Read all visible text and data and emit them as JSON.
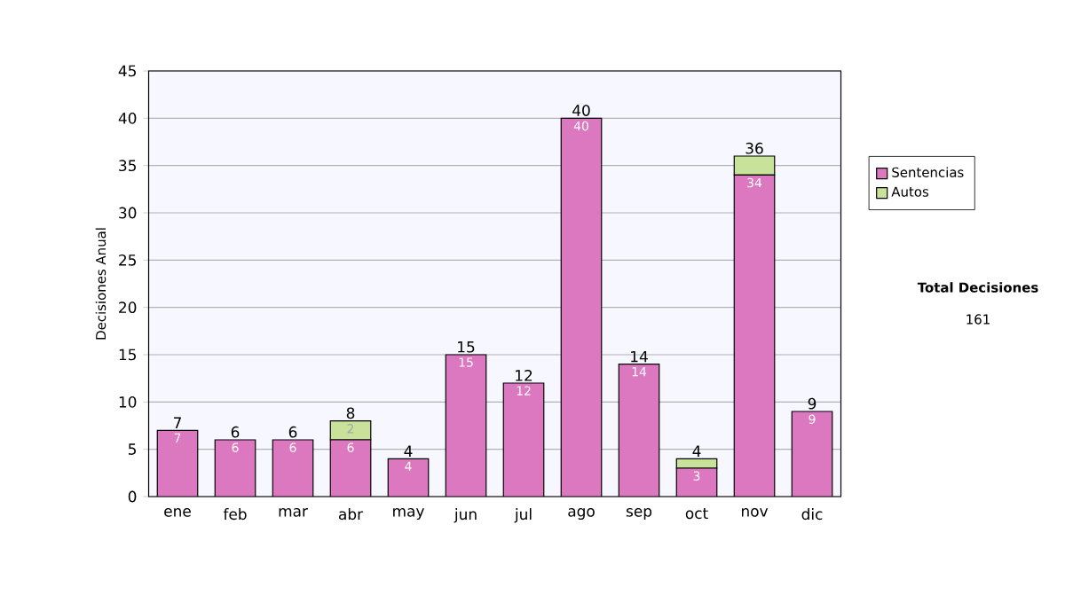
{
  "chart_data": {
    "type": "bar",
    "stacked": true,
    "categories": [
      "ene",
      "feb",
      "mar",
      "abr",
      "may",
      "jun",
      "jul",
      "ago",
      "sep",
      "oct",
      "nov",
      "dic"
    ],
    "series": [
      {
        "name": "Sentencias",
        "color": "#dc78c0",
        "values": [
          7,
          6,
          6,
          6,
          4,
          15,
          12,
          40,
          14,
          3,
          34,
          9
        ],
        "value_labels": [
          "7",
          "6",
          "6",
          "6",
          "4",
          "15",
          "12",
          "40",
          "14",
          "3",
          "34",
          "9"
        ]
      },
      {
        "name": "Autos",
        "color": "#c8e29a",
        "values": [
          0,
          0,
          0,
          2,
          0,
          0,
          0,
          0,
          0,
          1,
          2,
          0
        ],
        "value_labels": [
          null,
          null,
          null,
          "2",
          null,
          null,
          null,
          null,
          null,
          null,
          null,
          null
        ]
      }
    ],
    "totals": [
      "7",
      "6",
      "6",
      "8",
      "4",
      "15",
      "12",
      "40",
      "14",
      "4",
      "36",
      "9"
    ],
    "ylabel": "Decisiones Anual",
    "ylim": [
      0,
      45
    ],
    "yticks": [
      0,
      5,
      10,
      15,
      20,
      25,
      30,
      35,
      40,
      45
    ],
    "grid": "y",
    "legend": "right",
    "annotations": [
      "Total Decisiones",
      "161"
    ]
  }
}
